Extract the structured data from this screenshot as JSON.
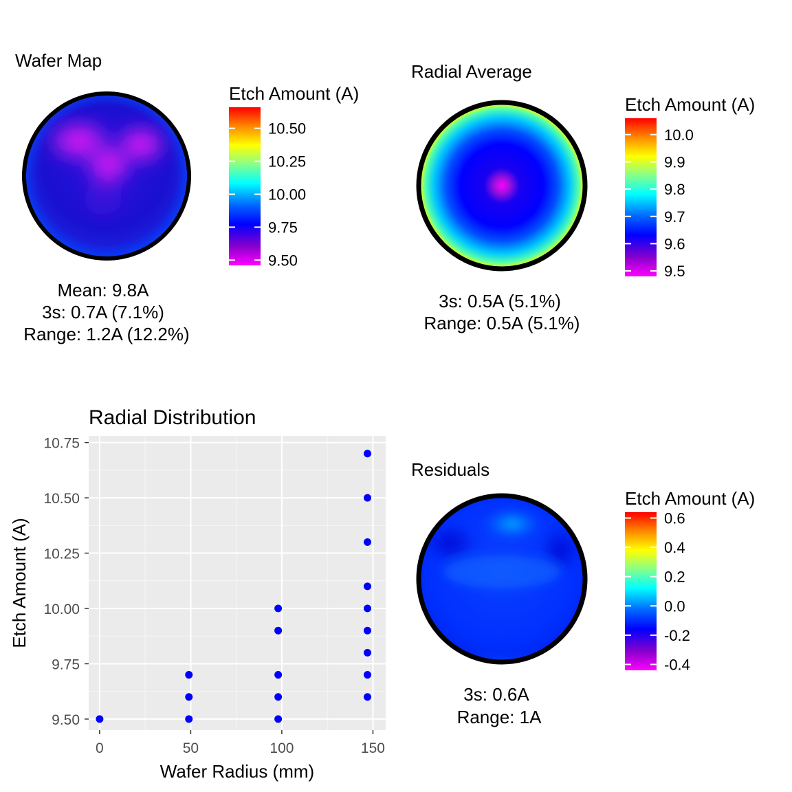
{
  "palette": [
    "#ff00ff",
    "#8800cc",
    "#0000ff",
    "#0066ff",
    "#00ffff",
    "#88ff88",
    "#ffff00",
    "#ff8800",
    "#ff0000"
  ],
  "wafer_map": {
    "title": "Wafer Map",
    "legend_title": "Etch Amount (A)",
    "legend_labels": [
      "10.50",
      "10.25",
      "10.00",
      "9.75",
      "9.50"
    ],
    "legend_values": [
      10.5,
      10.25,
      10.0,
      9.75,
      9.5
    ],
    "scale_min": 9.46,
    "scale_max": 10.66,
    "stats": [
      "Mean: 9.8A",
      "3s: 0.7A (7.1%)",
      "Range: 1.2A (12.2%)"
    ]
  },
  "radial_average": {
    "title": "Radial Average",
    "legend_title": "Etch Amount (A)",
    "legend_labels": [
      "10.0",
      "9.9",
      "9.8",
      "9.7",
      "9.6",
      "9.5"
    ],
    "legend_values": [
      10.0,
      9.9,
      9.8,
      9.7,
      9.6,
      9.5
    ],
    "scale_min": 9.48,
    "scale_max": 10.06,
    "stats": [
      "3s: 0.5A (5.1%)",
      "Range: 0.5A (5.1%)"
    ]
  },
  "residuals": {
    "title": "Residuals",
    "legend_title": "Etch Amount (A)",
    "legend_labels": [
      "0.6",
      "0.4",
      "0.2",
      "0.0",
      "-0.2",
      "-0.4"
    ],
    "legend_values": [
      0.6,
      0.4,
      0.2,
      0.0,
      -0.2,
      -0.4
    ],
    "scale_min": -0.44,
    "scale_max": 0.64,
    "stats": [
      "3s: 0.6A",
      "Range: 1A"
    ]
  },
  "chart_data": {
    "type": "scatter",
    "title": "Radial Distribution",
    "xlabel": "Wafer Radius (mm)",
    "ylabel": "Etch Amount (A)",
    "x_ticks": [
      0,
      50,
      100,
      150
    ],
    "y_ticks": [
      9.5,
      9.75,
      10.0,
      10.25,
      10.5,
      10.75
    ],
    "x_tick_labels": [
      "0",
      "50",
      "100",
      "150"
    ],
    "y_tick_labels": [
      "9.50",
      "9.75",
      "10.00",
      "10.25",
      "10.50",
      "10.75"
    ],
    "xlim": [
      -6,
      157
    ],
    "ylim": [
      9.45,
      10.78
    ],
    "grid": true,
    "point_color": "#0000ff",
    "points": [
      {
        "x": 0,
        "y": 9.5
      },
      {
        "x": 49,
        "y": 9.5
      },
      {
        "x": 49,
        "y": 9.6
      },
      {
        "x": 49,
        "y": 9.7
      },
      {
        "x": 98,
        "y": 9.5
      },
      {
        "x": 98,
        "y": 9.6
      },
      {
        "x": 98,
        "y": 9.7
      },
      {
        "x": 98,
        "y": 9.9
      },
      {
        "x": 98,
        "y": 10.0
      },
      {
        "x": 147,
        "y": 9.6
      },
      {
        "x": 147,
        "y": 9.7
      },
      {
        "x": 147,
        "y": 9.8
      },
      {
        "x": 147,
        "y": 9.9
      },
      {
        "x": 147,
        "y": 10.0
      },
      {
        "x": 147,
        "y": 10.1
      },
      {
        "x": 147,
        "y": 10.3
      },
      {
        "x": 147,
        "y": 10.5
      },
      {
        "x": 147,
        "y": 10.7
      }
    ]
  }
}
